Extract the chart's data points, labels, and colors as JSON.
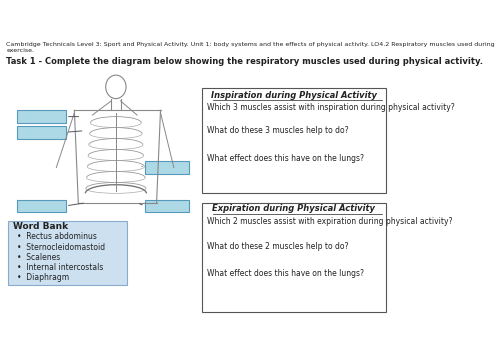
{
  "header_text": "Cambridge Technicals Level 3: Sport and Physical Activity. Unit 1: body systems and the effects of physical activity. LO4.2 Respiratory muscles used during\nexercise.",
  "task_text": "Task 1 - Complete the diagram below showing the respiratory muscles used during physical activity.",
  "inspiration_title": "Inspiration during Physical Activity",
  "inspiration_q1": "Which 3 muscles assist with inspiration during physical activity?",
  "inspiration_q2": "What do these 3 muscles help to do?",
  "inspiration_q3": "What effect does this have on the lungs?",
  "expiration_title": "Expiration during Physical Activity",
  "expiration_q1": "Which 2 muscles assist with expiration during physical activity?",
  "expiration_q2": "What do these 2 muscles help to do?",
  "expiration_q3": "What effect does this have on the lungs?",
  "word_bank_title": "Word Bank",
  "word_bank_items": [
    "Rectus abdominus",
    "Sternocleidomastoid",
    "Scalenes",
    "Internal intercostals",
    "Diaphragm"
  ],
  "word_bank_bg": "#cce0f0",
  "bg_color": "#ffffff",
  "label_box_color": "#add8e6",
  "border_color": "#555555",
  "text_color": "#222222"
}
